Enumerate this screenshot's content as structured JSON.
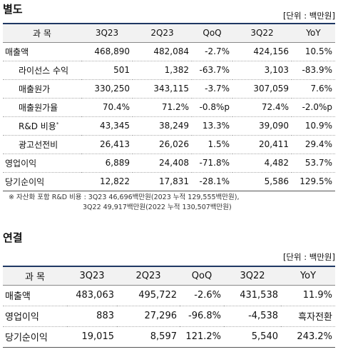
{
  "sections": [
    {
      "title": "별도",
      "unit": "[단위 : 백만원]",
      "header": [
        "과 목",
        "3Q23",
        "2Q23",
        "QoQ",
        "3Q22",
        "YoY"
      ],
      "rows": [
        [
          "매출액",
          "468,890",
          "482,084",
          "-2.7%",
          "424,156",
          "10.5%"
        ],
        [
          "라이선스 수익",
          "501",
          "1,382",
          "-63.7%",
          "3,103",
          "-83.9%"
        ],
        [
          "매출원가",
          "330,250",
          "343,115",
          "-3.7%",
          "307,059",
          "7.6%"
        ],
        [
          "매출원가율",
          "70.4%",
          "71.2%",
          "-0.8%p",
          "72.4%",
          "-2.0%p"
        ],
        [
          "R&D 비용",
          "43,345",
          "38,249",
          "13.3%",
          "39,090",
          "10.9%"
        ],
        [
          "광고선전비",
          "26,413",
          "26,026",
          "1.5%",
          "20,411",
          "29.4%"
        ],
        [
          "영업이익",
          "6,889",
          "24,408",
          "-71.8%",
          "4,482",
          "53.7%"
        ],
        [
          "당기순이익",
          "12,822",
          "17,831",
          "-28.1%",
          "5,586",
          "129.5%"
        ]
      ],
      "marker": "*",
      "footnote": [
        "※ 자산화 포함 R&D 비용 : 3Q23 46,696백만원(2023 누적 129,555백만원),",
        "3Q22 49,917백만원(2022 누적 130,507백만원)"
      ]
    },
    {
      "title": "연결",
      "unit": "[단위 : 백만원]",
      "header": [
        "과 목",
        "3Q23",
        "2Q23",
        "QoQ",
        "3Q22",
        "YoY"
      ],
      "rows": [
        [
          "매출액",
          "483,063",
          "495,722",
          "-2.6%",
          "431,538",
          "11.9%"
        ],
        [
          "영업이익",
          "883",
          "27,296",
          "-96.8%",
          "-4,538",
          "흑자전환"
        ],
        [
          "당기순이익",
          "19,015",
          "8,597",
          "121.2%",
          "5,540",
          "243.2%"
        ]
      ]
    }
  ]
}
